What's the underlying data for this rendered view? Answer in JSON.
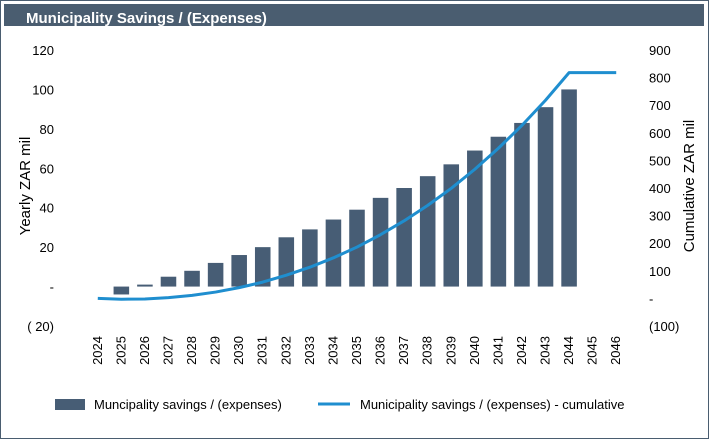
{
  "header": {
    "title": "Municipality Savings / (Expenses)",
    "bar_color": "#4a5d70"
  },
  "chart_data": {
    "type": "bar",
    "title": "Municipality Savings / (Expenses)",
    "categories": [
      "2024",
      "2025",
      "2026",
      "2027",
      "2028",
      "2029",
      "2030",
      "2031",
      "2032",
      "2033",
      "2034",
      "2035",
      "2036",
      "2037",
      "2038",
      "2039",
      "2040",
      "2041",
      "2042",
      "2043",
      "2044",
      "2045",
      "2046"
    ],
    "series": [
      {
        "name": "Muncipality savings / (expenses)",
        "kind": "bar",
        "axis": "left",
        "color": "#475d75",
        "values": [
          0,
          -4,
          1,
          5,
          8,
          12,
          16,
          20,
          25,
          29,
          34,
          39,
          45,
          50,
          56,
          62,
          69,
          76,
          83,
          91,
          100,
          0,
          0
        ]
      },
      {
        "name": "Municipality savings / (expenses) - cumulative",
        "kind": "line",
        "axis": "right",
        "color": "#1f8ecf",
        "values": [
          0,
          -3,
          -2,
          3,
          11,
          23,
          39,
          59,
          84,
          113,
          147,
          186,
          231,
          281,
          337,
          399,
          468,
          544,
          627,
          718,
          818,
          818,
          818
        ]
      }
    ],
    "y_left": {
      "label": "Yearly ZAR mil",
      "range": [
        -20,
        120
      ],
      "ticks": [
        -20,
        0,
        20,
        40,
        60,
        80,
        100,
        120
      ],
      "tick_labels": [
        "( 20)",
        "-",
        "20",
        "40",
        "60",
        "80",
        "100",
        "120"
      ]
    },
    "y_right": {
      "label": "Cumulative ZAR mil",
      "range": [
        -100,
        900
      ],
      "ticks": [
        -100,
        0,
        100,
        200,
        300,
        400,
        500,
        600,
        700,
        800,
        900
      ],
      "tick_labels": [
        "(100)",
        "-",
        "100",
        "200",
        "300",
        "400",
        "500",
        "600",
        "700",
        "800",
        "900"
      ]
    },
    "grid": false,
    "legend": {
      "placement": "bottom",
      "entries": [
        "Muncipality savings / (expenses)",
        "Municipality savings / (expenses) - cumulative"
      ]
    }
  }
}
